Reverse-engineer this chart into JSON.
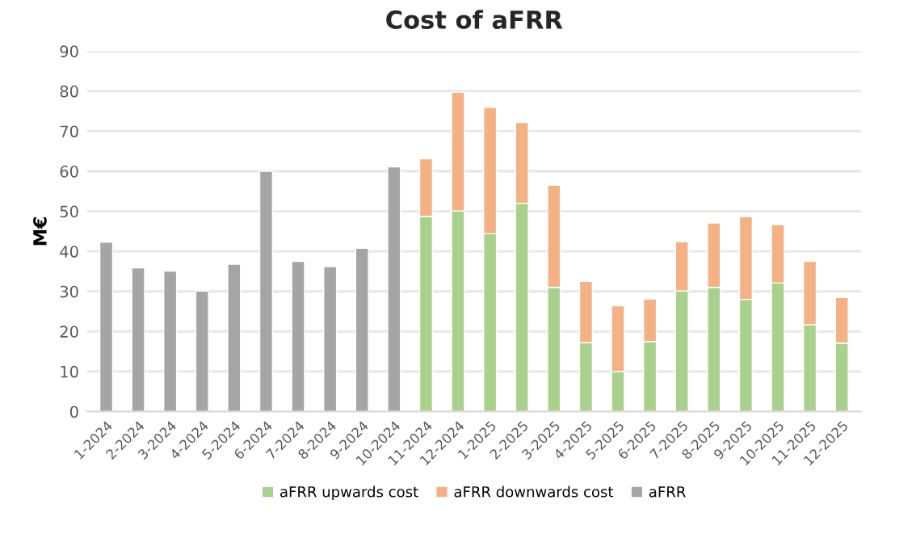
{
  "chart_data": {
    "type": "bar",
    "stacked": true,
    "title": "Cost of aFRR",
    "ylabel": "M€",
    "categories": [
      "1-2024",
      "2-2024",
      "3-2024",
      "4-2024",
      "5-2024",
      "6-2024",
      "7-2024",
      "8-2024",
      "9-2024",
      "10-2024",
      "11-2024",
      "12-2024",
      "1-2025",
      "2-2025",
      "3-2025",
      "4-2025",
      "5-2025",
      "6-2025",
      "7-2025",
      "8-2025",
      "9-2025",
      "10-2025",
      "11-2025",
      "12-2025"
    ],
    "series": [
      {
        "name": "aFRR upwards cost",
        "color": "#a9d18e",
        "values": [
          null,
          null,
          null,
          null,
          null,
          null,
          null,
          null,
          null,
          null,
          48.7,
          50.1,
          44.4,
          52.0,
          31.0,
          17.2,
          10.0,
          17.5,
          30.1,
          31.0,
          28.0,
          32.1,
          21.7,
          17.1
        ]
      },
      {
        "name": "aFRR downwards cost",
        "color": "#f4b183",
        "values": [
          null,
          null,
          null,
          null,
          null,
          null,
          null,
          null,
          null,
          null,
          14.4,
          29.6,
          31.6,
          20.2,
          25.5,
          15.3,
          16.4,
          10.6,
          12.3,
          16.1,
          20.7,
          14.6,
          15.8,
          11.4
        ]
      },
      {
        "name": "aFRR",
        "color": "#a5a5a5",
        "values": [
          42.3,
          35.9,
          35.1,
          30.1,
          36.8,
          60.0,
          37.5,
          36.2,
          40.8,
          61.1,
          null,
          null,
          null,
          null,
          null,
          null,
          null,
          null,
          null,
          null,
          null,
          null,
          null,
          null
        ]
      }
    ],
    "ylim": [
      0,
      90
    ],
    "yticks": [
      0,
      10,
      20,
      30,
      40,
      50,
      60,
      70,
      80,
      90
    ],
    "grid": "y",
    "legend": "bottom"
  }
}
